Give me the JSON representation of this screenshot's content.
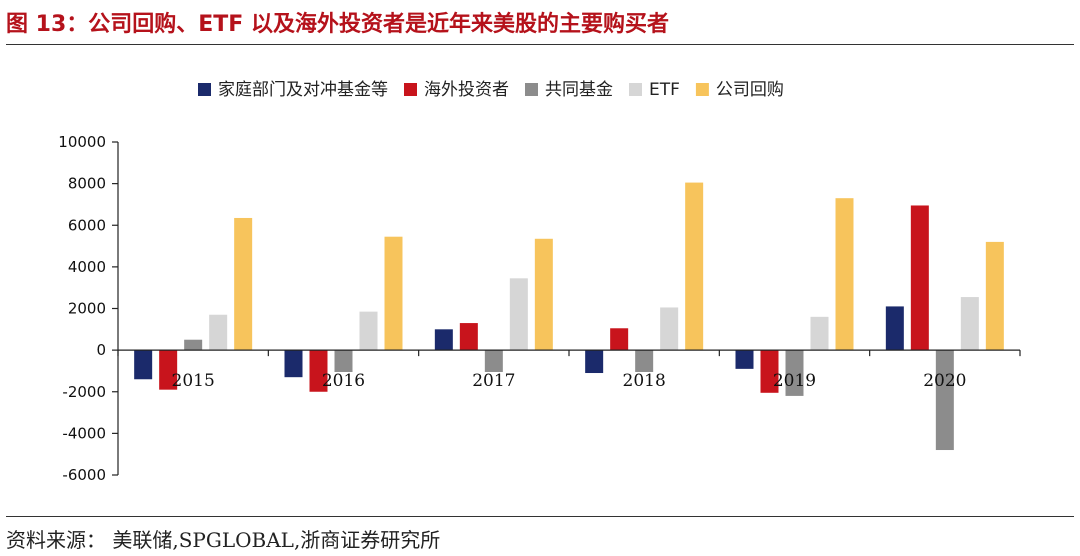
{
  "title": "图 13：公司回购、ETF 以及海外投资者是近年来美股的主要购买者",
  "source": "资料来源：  美联储,SPGLOBAL,浙商证券研究所",
  "colors": {
    "title": "#b5121b",
    "series": [
      "#1b2a6b",
      "#c8141c",
      "#8c8c8c",
      "#d6d6d6",
      "#f7c45c"
    ]
  },
  "chart_data": {
    "type": "bar",
    "categories": [
      "2015",
      "2016",
      "2017",
      "2018",
      "2019",
      "2020"
    ],
    "series": [
      {
        "name": "家庭部门及对冲基金等",
        "values": [
          -1400,
          -1300,
          1000,
          -1100,
          -900,
          2100
        ]
      },
      {
        "name": "海外投资者",
        "values": [
          -1900,
          -2000,
          1300,
          1050,
          -2050,
          6950
        ]
      },
      {
        "name": "共同基金",
        "values": [
          500,
          -1050,
          -1050,
          -1050,
          -2200,
          -4800
        ]
      },
      {
        "name": "ETF",
        "values": [
          1700,
          1850,
          3450,
          2050,
          1600,
          2550
        ]
      },
      {
        "name": "公司回购",
        "values": [
          6350,
          5450,
          5350,
          8050,
          7300,
          5200
        ]
      }
    ],
    "ylim": [
      -6000,
      10000
    ],
    "yticks": [
      "10000",
      "8000",
      "6000",
      "4000",
      "2000",
      "0",
      "-2000",
      "-4000",
      "-6000"
    ],
    "ytick_values": [
      10000,
      8000,
      6000,
      4000,
      2000,
      0,
      -2000,
      -4000,
      -6000
    ],
    "legend_position": "top-center",
    "grid": false
  }
}
